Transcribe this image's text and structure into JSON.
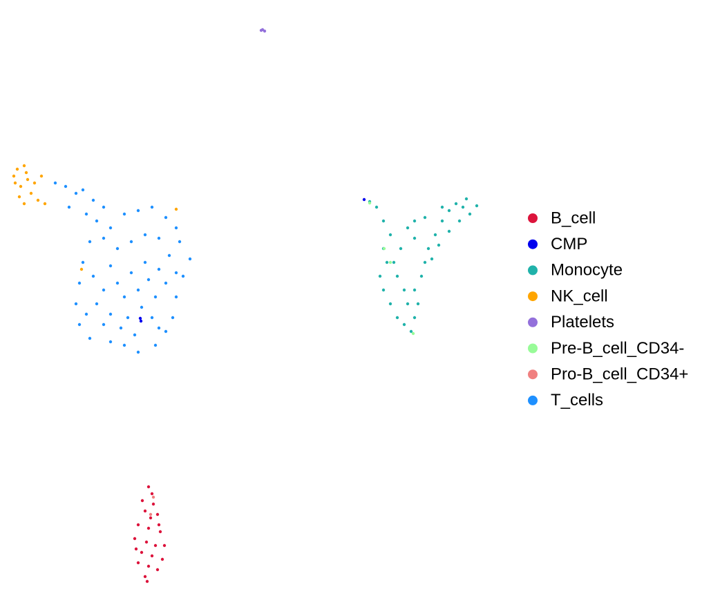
{
  "chart_data": {
    "type": "scatter",
    "xlim": [
      0,
      740
    ],
    "ylim": [
      861,
      0
    ],
    "series": [
      {
        "name": "B_cell",
        "color": "#dc143c",
        "x": [
          215,
          220,
          222,
          210,
          228,
          200,
          215,
          232,
          195,
          212,
          225,
          205,
          220,
          235,
          200,
          215,
          228,
          210,
          197,
          238,
          218,
          206,
          230,
          213
        ],
        "y": [
          705,
          715,
          730,
          740,
          745,
          760,
          765,
          770,
          780,
          785,
          790,
          800,
          805,
          810,
          815,
          820,
          825,
          835,
          795,
          790,
          750,
          725,
          760,
          842
        ]
      },
      {
        "name": "CMP",
        "color": "#0000ee",
        "x": [
          527,
          204,
          203
        ],
        "y": [
          289,
          465,
          461
        ]
      },
      {
        "name": "Monocyte",
        "color": "#20b2aa",
        "x": [
          535,
          545,
          555,
          565,
          555,
          560,
          550,
          555,
          565,
          575,
          585,
          595,
          600,
          605,
          600,
          610,
          615,
          620,
          630,
          640,
          650,
          660,
          675,
          690,
          680,
          665,
          650,
          635,
          625,
          590,
          600,
          615,
          580,
          575,
          585,
          570,
          590,
          600,
          640,
          670
        ],
        "y": [
          292,
          300,
          320,
          340,
          360,
          380,
          400,
          420,
          440,
          460,
          470,
          480,
          460,
          440,
          420,
          400,
          380,
          360,
          340,
          320,
          305,
          295,
          288,
          298,
          310,
          320,
          335,
          355,
          375,
          330,
          320,
          315,
          360,
          400,
          420,
          380,
          440,
          345,
          300,
          300
        ]
      },
      {
        "name": "NK_cell",
        "color": "#ffa500",
        "x": [
          20,
          25,
          35,
          40,
          30,
          45,
          55,
          28,
          50,
          60,
          38,
          22,
          65,
          118,
          255,
          35
        ],
        "y": [
          255,
          245,
          240,
          260,
          270,
          280,
          290,
          285,
          265,
          255,
          250,
          265,
          295,
          390,
          303,
          295
        ]
      },
      {
        "name": "Platelets",
        "color": "#9370db",
        "x": [
          380,
          383,
          378
        ],
        "y": [
          43,
          45,
          44
        ]
      },
      {
        "name": "Pre-B_cell_CD34-",
        "color": "#98fb98",
        "x": [
          598,
          556,
          565,
          535
        ],
        "y": [
          483,
          360,
          380,
          294
        ]
      },
      {
        "name": "Pro-B_cell_CD34+",
        "color": "#f08080",
        "x": [
          218,
          222
        ],
        "y": [
          745,
          720
        ]
      },
      {
        "name": "T_cells",
        "color": "#1e90ff",
        "x": [
          80,
          95,
          110,
          120,
          135,
          150,
          100,
          125,
          140,
          160,
          180,
          200,
          220,
          240,
          255,
          260,
          275,
          265,
          255,
          250,
          240,
          225,
          200,
          180,
          160,
          130,
          115,
          110,
          115,
          120,
          130,
          150,
          170,
          190,
          210,
          230,
          245,
          230,
          210,
          190,
          170,
          150,
          140,
          160,
          185,
          205,
          225,
          240,
          220,
          195,
          175,
          150,
          135,
          160,
          200,
          215,
          230,
          180,
          125,
          255
        ],
        "y": [
          265,
          270,
          280,
          275,
          290,
          300,
          300,
          310,
          320,
          330,
          310,
          305,
          300,
          315,
          330,
          350,
          375,
          400,
          430,
          460,
          480,
          500,
          510,
          500,
          495,
          490,
          470,
          440,
          410,
          380,
          350,
          345,
          360,
          350,
          340,
          345,
          370,
          390,
          380,
          395,
          410,
          420,
          440,
          455,
          460,
          445,
          430,
          410,
          460,
          485,
          475,
          470,
          400,
          385,
          420,
          405,
          475,
          430,
          455,
          395
        ]
      }
    ]
  }
}
